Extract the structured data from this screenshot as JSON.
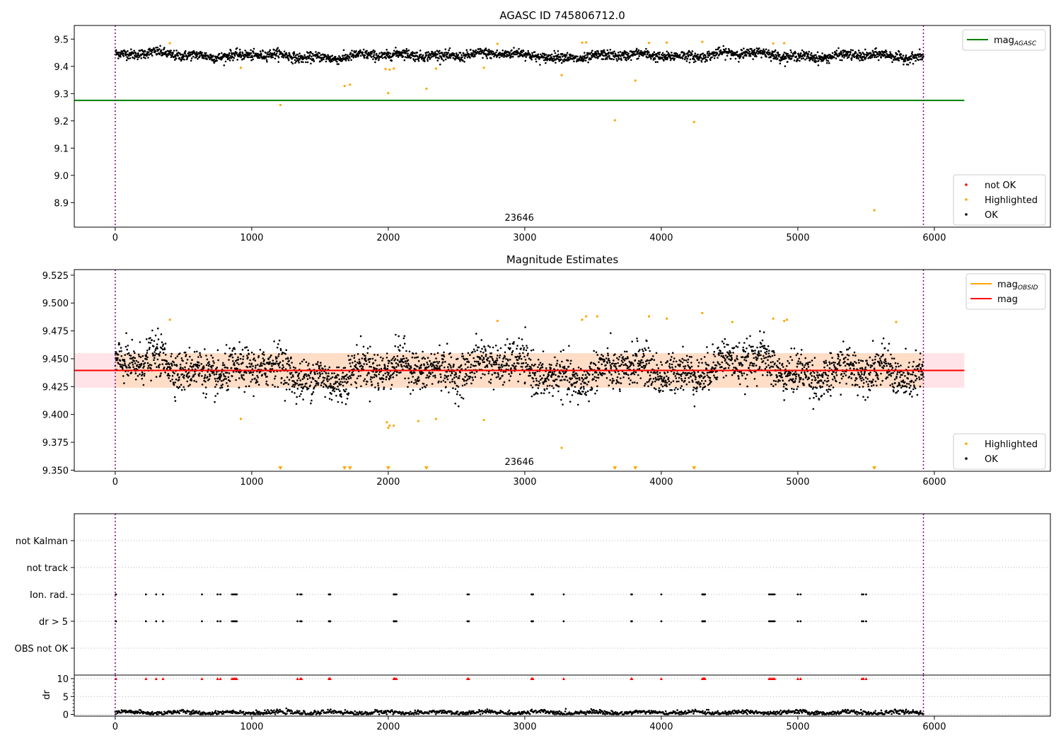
{
  "colors": {
    "ok": "#000000",
    "highlighted": "#ffa500",
    "not_ok": "#ff0000",
    "mag_agasc_line": "#008000",
    "mag_obsid_line": "#ffa500",
    "mag_line": "#ff0000",
    "mag_band": "#ffc0cb",
    "obsid_band": "#ffdab9",
    "vline": "#800080",
    "grid": "#b0b0b0"
  },
  "chart_data": [
    {
      "type": "scatter",
      "title": "AGASC ID 745806712.0",
      "xlim": [
        -300,
        6850
      ],
      "ylim": [
        8.81,
        9.55
      ],
      "xticks": [
        0,
        1000,
        2000,
        3000,
        4000,
        5000,
        6000
      ],
      "yticks": [
        8.9,
        9.0,
        9.1,
        9.2,
        9.3,
        9.4,
        9.5
      ],
      "ytick_labels": [
        "8.9",
        "9.0",
        "9.1",
        "9.2",
        "9.3",
        "9.4",
        "9.5"
      ],
      "obsid_label": "23646",
      "obsid_label_x": 2960,
      "vlines": [
        0,
        5920
      ],
      "hlines": [
        {
          "y": 9.275,
          "x0": -300,
          "x1": 6220,
          "series": "mag_agasc"
        }
      ],
      "legend_upper": {
        "placement": "top-right",
        "entries": [
          {
            "key": "mag_agasc",
            "label": "mag",
            "sub": "AGASC"
          }
        ]
      },
      "legend_lower": {
        "placement": "bottom-right",
        "entries": [
          {
            "key": "not_ok",
            "label": "not OK"
          },
          {
            "key": "highlighted",
            "label": "Highlighted"
          },
          {
            "key": "ok",
            "label": "OK"
          }
        ]
      },
      "ok_band": {
        "x0": 0,
        "x1": 5920,
        "baseline": 9.44,
        "noise": 0.012
      },
      "highlighted_points": [
        [
          400,
          9.485
        ],
        [
          920,
          9.395
        ],
        [
          1210,
          9.258
        ],
        [
          1680,
          9.328
        ],
        [
          1720,
          9.333
        ],
        [
          1980,
          9.39
        ],
        [
          2000,
          9.302
        ],
        [
          2010,
          9.388
        ],
        [
          2040,
          9.392
        ],
        [
          2280,
          9.318
        ],
        [
          2350,
          9.392
        ],
        [
          2700,
          9.395
        ],
        [
          2800,
          9.483
        ],
        [
          3270,
          9.368
        ],
        [
          3420,
          9.487
        ],
        [
          3450,
          9.488
        ],
        [
          3660,
          9.202
        ],
        [
          3810,
          9.348
        ],
        [
          3910,
          9.486
        ],
        [
          4040,
          9.487
        ],
        [
          4240,
          9.196
        ],
        [
          4300,
          9.49
        ],
        [
          4820,
          9.484
        ],
        [
          4900,
          9.485
        ],
        [
          5560,
          8.872
        ]
      ]
    },
    {
      "type": "scatter",
      "title": "Magnitude Estimates",
      "xlim": [
        -300,
        6850
      ],
      "ylim": [
        9.349,
        9.53
      ],
      "xticks": [
        0,
        1000,
        2000,
        3000,
        4000,
        5000,
        6000
      ],
      "yticks": [
        9.35,
        9.375,
        9.4,
        9.425,
        9.45,
        9.475,
        9.5,
        9.525
      ],
      "ytick_labels": [
        "9.350",
        "9.375",
        "9.400",
        "9.425",
        "9.450",
        "9.475",
        "9.500",
        "9.525"
      ],
      "obsid_label": "23646",
      "obsid_label_x": 2960,
      "vlines": [
        0,
        5920
      ],
      "mag_line": {
        "y": 9.4395,
        "x0": -300,
        "x1": 6220
      },
      "mag_obsid_line": {
        "y": 9.4395,
        "x0": 0,
        "x1": 5920
      },
      "mag_band": {
        "y0": 9.424,
        "y1": 9.455,
        "x0": -300,
        "x1": 6220
      },
      "obsid_band": {
        "y0": 9.424,
        "y1": 9.455,
        "x0": 0,
        "x1": 5920
      },
      "legend_upper": {
        "placement": "top-right",
        "entries": [
          {
            "key": "mag_obsid",
            "label": "mag",
            "sub": "OBSID"
          },
          {
            "key": "mag",
            "label": "mag"
          }
        ]
      },
      "legend_lower": {
        "placement": "bottom-right",
        "entries": [
          {
            "key": "highlighted",
            "label": "Highlighted"
          },
          {
            "key": "ok",
            "label": "OK"
          }
        ]
      },
      "ok_band": {
        "x0": 0,
        "x1": 5920,
        "baseline": 9.44,
        "noise": 0.012
      },
      "highlighted_points": [
        [
          400,
          9.485
        ],
        [
          920,
          9.396
        ],
        [
          1990,
          9.393
        ],
        [
          2000,
          9.388
        ],
        [
          2010,
          9.39
        ],
        [
          2040,
          9.39
        ],
        [
          2220,
          9.394
        ],
        [
          2350,
          9.396
        ],
        [
          2700,
          9.395
        ],
        [
          2800,
          9.484
        ],
        [
          3270,
          9.37
        ],
        [
          3420,
          9.485
        ],
        [
          3450,
          9.488
        ],
        [
          3530,
          9.488
        ],
        [
          3910,
          9.488
        ],
        [
          4040,
          9.486
        ],
        [
          4300,
          9.491
        ],
        [
          4520,
          9.483
        ],
        [
          4820,
          9.486
        ],
        [
          4900,
          9.484
        ],
        [
          4920,
          9.485
        ],
        [
          5720,
          9.483
        ]
      ],
      "below_range_markers": [
        1210,
        1680,
        1720,
        2000,
        2280,
        3660,
        3810,
        4240,
        5560
      ]
    },
    {
      "type": "scatter",
      "title": "",
      "xlim": [
        -300,
        6850
      ],
      "categories": [
        "not Kalman",
        "not track",
        "Ion. rad.",
        "dr > 5",
        "OBS not OK"
      ],
      "flag_x": [
        5,
        225,
        300,
        350,
        635,
        750,
        770,
        855,
        865,
        875,
        880,
        890,
        1335,
        1355,
        1365,
        1565,
        1570,
        1575,
        2040,
        2045,
        2050,
        2060,
        2580,
        2590,
        3050,
        3055,
        3060,
        3285,
        3780,
        3785,
        4000,
        4300,
        4305,
        4310,
        4315,
        4320,
        4790,
        4800,
        4810,
        4820,
        4830,
        5000,
        5020,
        5470,
        5480,
        5500
      ],
      "flag_rows": [
        "Ion. rad.",
        "dr > 5"
      ],
      "vlines": [
        0,
        5920
      ]
    },
    {
      "type": "scatter",
      "title": "",
      "ylabel": "dr",
      "xlim": [
        -300,
        6850
      ],
      "ylim": [
        -0.5,
        11
      ],
      "xticks": [
        0,
        1000,
        2000,
        3000,
        4000,
        5000,
        6000
      ],
      "yticks": [
        0,
        5,
        10
      ],
      "ytick_labels": [
        "0",
        "5",
        "10"
      ],
      "vlines": [
        0,
        5920
      ],
      "dr_ok": {
        "x0": 0,
        "x1": 5920,
        "baseline": 0.5,
        "noise": 0.3
      },
      "dr_capped_value": 10
    }
  ]
}
